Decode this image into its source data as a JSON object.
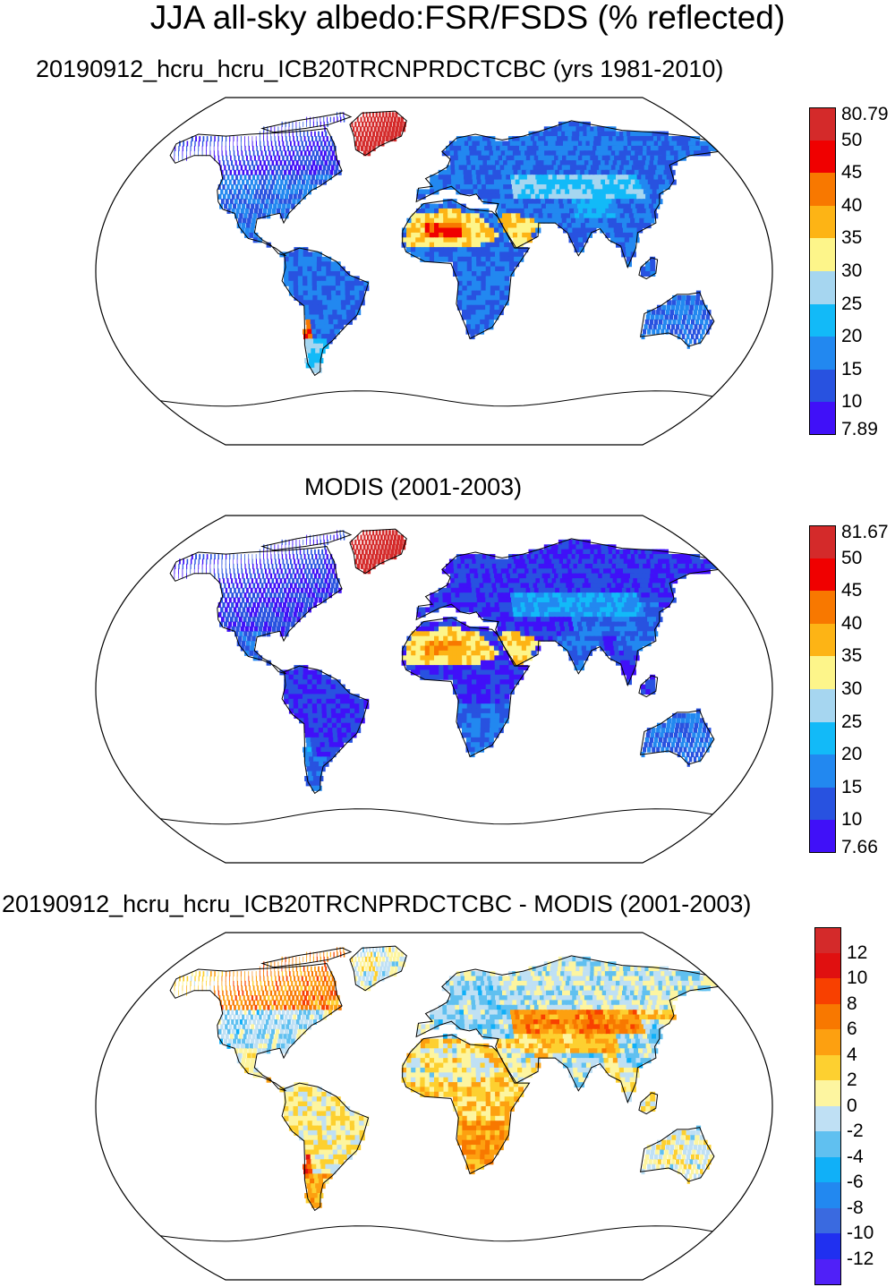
{
  "figure": {
    "title": "JJA all-sky albedo:FSR/FSDS (% reflected)"
  },
  "panels": [
    {
      "id": "model",
      "title": "20190912_hcru_hcru_ICB20TRCNPRDCTCBC (yrs 1981-2010)",
      "colorbar": {
        "labels": [
          "80.79",
          "50",
          "45",
          "40",
          "35",
          "30",
          "25",
          "20",
          "15",
          "10",
          "7.89"
        ],
        "colors": [
          "#d42a2a",
          "#f00000",
          "#f87800",
          "#fdb415",
          "#fdf58a",
          "#a6d6f0",
          "#12baf8",
          "#2288f0",
          "#2852e0",
          "#4010f8"
        ]
      },
      "region_values": {
        "canada": 10,
        "usa": 15,
        "greenland": 80,
        "mexico": 15,
        "south_america": 15,
        "patagonia": 25,
        "andes_peak": 45,
        "europe": 15,
        "russia": 15,
        "central_asia": 25,
        "tibet": 20,
        "sahara": 35,
        "sahara_hot": 45,
        "arabia": 35,
        "central_africa": 15,
        "southern_africa": 15,
        "india": 15,
        "china": 15,
        "se_asia": 15,
        "australia": 15,
        "alaska": 10
      }
    },
    {
      "id": "obs",
      "title": "MODIS (2001-2003)",
      "colorbar": {
        "labels": [
          "81.67",
          "50",
          "45",
          "40",
          "35",
          "30",
          "25",
          "20",
          "15",
          "10",
          "7.66"
        ],
        "colors": [
          "#d42a2a",
          "#f00000",
          "#f87800",
          "#fdb415",
          "#fdf58a",
          "#a6d6f0",
          "#12baf8",
          "#2288f0",
          "#2852e0",
          "#4010f8"
        ]
      },
      "region_values": {
        "canada": 10,
        "usa": 10,
        "greenland": 80,
        "mexico": 15,
        "south_america": 10,
        "patagonia": 15,
        "andes_peak": 20,
        "europe": 10,
        "russia": 10,
        "central_asia": 20,
        "tibet": 15,
        "sahara": 35,
        "sahara_hot": 40,
        "arabia": 35,
        "central_africa": 10,
        "southern_africa": 15,
        "india": 15,
        "china": 15,
        "se_asia": 10,
        "australia": 15,
        "alaska": 10
      }
    },
    {
      "id": "diff",
      "title": "20190912_hcru_hcru_ICB20TRCNPRDCTCBC - MODIS (2001-2003)",
      "colorbar": {
        "labels": [
          "12",
          "10",
          "8",
          "6",
          "4",
          "2",
          "0",
          "-2",
          "-4",
          "-6",
          "-8",
          "-10",
          "-12"
        ],
        "colors": [
          "#d42a2a",
          "#e01010",
          "#f84000",
          "#f87800",
          "#fda010",
          "#fdd030",
          "#fdf5a0",
          "#bfe0f4",
          "#60c0f0",
          "#10b0f8",
          "#2288f0",
          "#3a6ae0",
          "#2030f0",
          "#5020f8"
        ]
      },
      "region_values": {
        "canada": 6,
        "usa": -2,
        "greenland": 0,
        "mexico": 0,
        "south_america": 1,
        "patagonia": 4,
        "andes_peak": 10,
        "europe": -2,
        "russia": -1,
        "central_asia": 6,
        "tibet": 4,
        "sahara": 0,
        "sahara_hot": 2,
        "arabia": 0,
        "central_africa": 3,
        "southern_africa": 5,
        "india": -2,
        "china": -2,
        "se_asia": 1,
        "australia": 0,
        "alaska": 2
      }
    }
  ]
}
